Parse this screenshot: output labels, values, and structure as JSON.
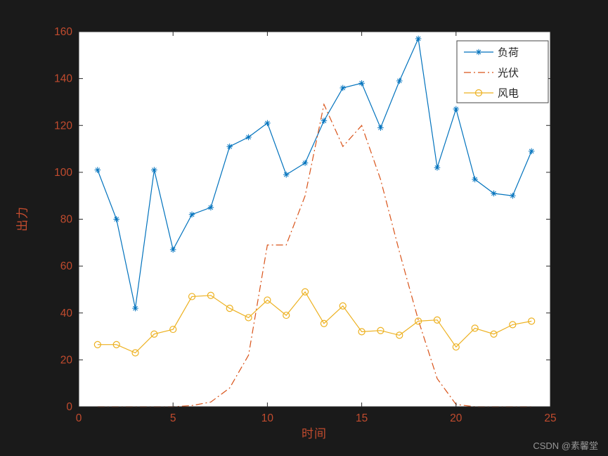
{
  "figure": {
    "background": "#1a1a1a",
    "plot_background": "#ffffff",
    "axis_color": "#262626",
    "tick_color": "#c14b2e",
    "label_color": "#c14b2e",
    "legend_text_color": "#262626",
    "watermark": "CSDN @素馨堂"
  },
  "chart_data": {
    "type": "line",
    "title": "",
    "xlabel": "时间",
    "ylabel": "出力",
    "xlim": [
      0,
      25
    ],
    "ylim": [
      0,
      160
    ],
    "xticks": [
      0,
      5,
      10,
      15,
      20,
      25
    ],
    "yticks": [
      0,
      20,
      40,
      60,
      80,
      100,
      120,
      140,
      160
    ],
    "grid": false,
    "legend_position": "top-right",
    "x": [
      1,
      2,
      3,
      4,
      5,
      6,
      7,
      8,
      9,
      10,
      11,
      12,
      13,
      14,
      15,
      16,
      17,
      18,
      19,
      20,
      21,
      22,
      23,
      24
    ],
    "series": [
      {
        "id": "load",
        "name": "负荷",
        "color": "#0072BD",
        "marker": "asterisk",
        "line_style": "solid",
        "values": [
          101,
          80,
          42,
          101,
          67,
          82,
          85,
          111,
          115,
          121,
          99,
          104,
          122,
          136,
          138,
          119,
          139,
          157,
          102,
          127,
          97,
          91,
          90,
          109
        ]
      },
      {
        "id": "pv",
        "name": "光伏",
        "color": "#D95319",
        "marker": "none",
        "line_style": "dash-dot",
        "values": [
          0,
          0,
          0,
          0,
          0,
          0.5,
          2,
          8,
          22,
          69,
          69,
          90,
          129,
          111,
          120,
          97,
          66,
          37,
          12,
          1,
          0,
          0,
          0,
          0
        ]
      },
      {
        "id": "wind",
        "name": "风电",
        "color": "#EDB120",
        "marker": "circle",
        "line_style": "solid",
        "values": [
          26.5,
          26.5,
          23,
          31,
          33,
          47,
          47.5,
          42,
          38,
          45.5,
          39,
          49,
          35.5,
          43,
          32,
          32.5,
          30.5,
          36.5,
          37,
          25.5,
          33.5,
          31,
          35,
          36.5
        ]
      }
    ]
  }
}
